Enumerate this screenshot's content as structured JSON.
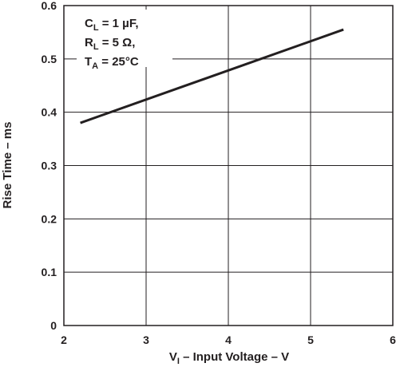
{
  "chart_data": {
    "type": "line",
    "xlabel": {
      "prefix": "V",
      "subscript": "I",
      "suffix": " – Input Voltage – V"
    },
    "ylabel": "Rise Time – ms",
    "xlim": [
      2,
      6
    ],
    "ylim": [
      0,
      0.6
    ],
    "x_ticks": [
      "2",
      "3",
      "4",
      "5",
      "6"
    ],
    "y_ticks": [
      "0",
      "0.1",
      "0.2",
      "0.3",
      "0.4",
      "0.5",
      "0.6"
    ],
    "grid": true,
    "series": [
      {
        "x": [
          2.2,
          5.4
        ],
        "y": [
          0.38,
          0.555
        ],
        "color": "#231f20"
      }
    ],
    "annotations": [
      {
        "main": "C",
        "sub": "L",
        "rest": " = 1 µF,"
      },
      {
        "main": "R",
        "sub": "L",
        "rest": " = 5 Ω,"
      },
      {
        "main": "T",
        "sub": "A",
        "rest": " = 25°C"
      }
    ]
  }
}
